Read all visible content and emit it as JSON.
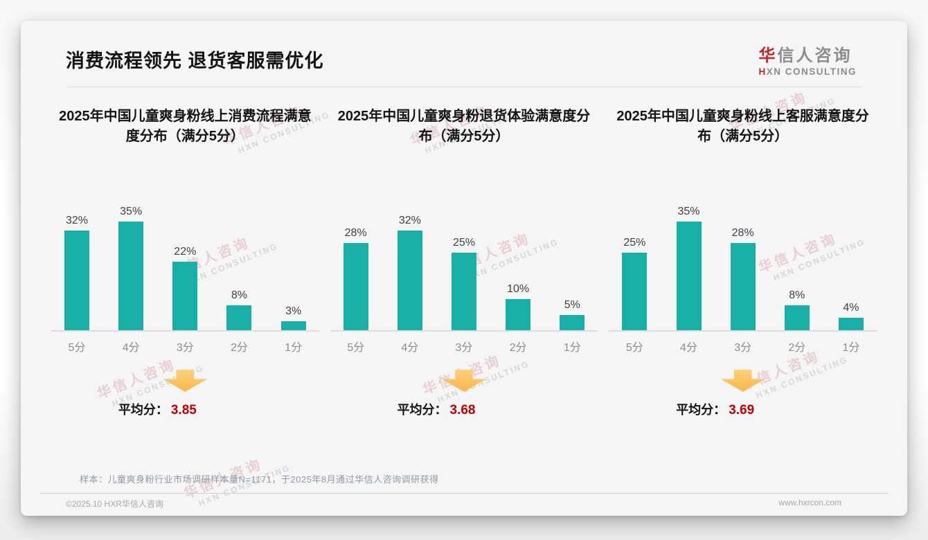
{
  "slide": {
    "title": "消费流程领先 退货客服需优化",
    "logo": {
      "zh_accent": "华",
      "zh_rest": "信人咨询",
      "en_accent": "H",
      "en_rest": "XN CONSULTING"
    },
    "watermark": {
      "zh": "华信人咨询",
      "en": "HXN CONSULTING"
    },
    "footnote": "样本：儿童爽身粉行业市场调研样本量N=1171，于2025年8月通过华信人咨询调研获得",
    "footer": {
      "left": "©2025.10 HXR华信人咨询",
      "right": "www.hxrcon.com"
    }
  },
  "colors": {
    "bar": "#17AFA6",
    "average_value": "#C00000",
    "arrow": "#F8B64E",
    "logo_accent": "#C0272D",
    "title_text": "#141414",
    "axis_label": "#8C8C8C"
  },
  "chart_data": [
    {
      "type": "bar",
      "title": "2025年中国儿童爽身粉线上消费流程满意度分布（满分5分）",
      "categories": [
        "5分",
        "4分",
        "3分",
        "2分",
        "1分"
      ],
      "values": [
        32,
        35,
        22,
        8,
        3
      ],
      "value_labels": [
        "32%",
        "35%",
        "22%",
        "8%",
        "3%"
      ],
      "unit": "%",
      "ylim": [
        0,
        40
      ],
      "grid": false,
      "average_label": "平均分：",
      "average_value": "3.85"
    },
    {
      "type": "bar",
      "title": "2025年中国儿童爽身粉退货体验满意度分布（满分5分）",
      "categories": [
        "5分",
        "4分",
        "3分",
        "2分",
        "1分"
      ],
      "values": [
        28,
        32,
        25,
        10,
        5
      ],
      "value_labels": [
        "28%",
        "32%",
        "25%",
        "10%",
        "5%"
      ],
      "unit": "%",
      "ylim": [
        0,
        40
      ],
      "grid": false,
      "average_label": "平均分：",
      "average_value": "3.68"
    },
    {
      "type": "bar",
      "title": "2025年中国儿童爽身粉线上客服满意度分布（满分5分）",
      "categories": [
        "5分",
        "4分",
        "3分",
        "2分",
        "1分"
      ],
      "values": [
        25,
        35,
        28,
        8,
        4
      ],
      "value_labels": [
        "25%",
        "35%",
        "28%",
        "8%",
        "4%"
      ],
      "unit": "%",
      "ylim": [
        0,
        40
      ],
      "grid": false,
      "average_label": "平均分：",
      "average_value": "3.69"
    }
  ]
}
